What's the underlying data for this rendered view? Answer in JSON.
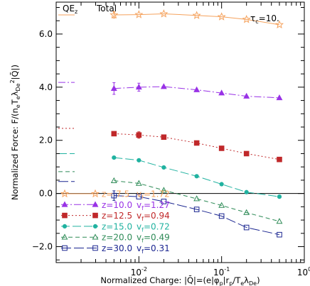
{
  "chart_data": {
    "type": "line",
    "x_scale": "log",
    "xlim": [
      0.001,
      1
    ],
    "ylim": [
      -2.6,
      7.2
    ],
    "xlabel": "Normalized Charge: |Q̄|=(e|φp|rp/TeλDe)",
    "ylabel": "Normalized Force: F/(neTeλDe2|Q̄|)",
    "x_ticks": [
      {
        "value": 0.01,
        "base": "10",
        "exp": "-2"
      },
      {
        "value": 0.1,
        "base": "10",
        "exp": "-1"
      },
      {
        "value": 1,
        "base": "10",
        "exp": "0"
      }
    ],
    "y_ticks": [
      {
        "value": -2.0,
        "label": "−2.0"
      },
      {
        "value": 0.0,
        "label": "0.0"
      },
      {
        "value": 2.0,
        "label": "2.0"
      },
      {
        "value": 4.0,
        "label": "4.0"
      },
      {
        "value": 6.0,
        "label": "6.0"
      }
    ],
    "annotations": {
      "qe_main": "QE",
      "qe_sub": "z",
      "total": "Total",
      "tau_main": "τ",
      "tau_sub": "c",
      "tau_rest": "=10."
    },
    "x": [
      0.005,
      0.01,
      0.02,
      0.05,
      0.1,
      0.2,
      0.5
    ],
    "series": [
      {
        "z_label": "z= 7.5",
        "vf_label": "v",
        "vf_sub": "f",
        "vf_value": "=1.72",
        "color": "#f5a25d",
        "marker": "star",
        "dash": "none",
        "qe": 6.72,
        "values": [
          6.72,
          6.73,
          6.76,
          6.7,
          6.65,
          6.55,
          6.35
        ],
        "errors": [
          0.12,
          0,
          0,
          0,
          0,
          0,
          0
        ]
      },
      {
        "z_label": "z=10.0",
        "vf_label": "v",
        "vf_sub": "f",
        "vf_value": "=1.27",
        "color": "#9932e6",
        "marker": "triangle-filled",
        "dash": "10,3,2,3",
        "qe": 4.18,
        "values": [
          3.95,
          4.0,
          4.02,
          3.9,
          3.78,
          3.66,
          3.6
        ],
        "errors": [
          0.22,
          0.15,
          0,
          0,
          0,
          0,
          0
        ]
      },
      {
        "z_label": "z=12.5",
        "vf_label": "v",
        "vf_sub": "f",
        "vf_value": "=0.94",
        "color": "#c0282a",
        "marker": "square-filled",
        "dash": "2,3",
        "qe": 2.45,
        "values": [
          2.25,
          2.2,
          2.12,
          1.9,
          1.7,
          1.5,
          1.28
        ],
        "errors": [
          0,
          0.12,
          0,
          0,
          0,
          0,
          0
        ]
      },
      {
        "z_label": "z=15.0",
        "vf_label": "v",
        "vf_sub": "f",
        "vf_value": "=0.72",
        "color": "#20b2a0",
        "marker": "circle-filled",
        "dash": "12,4",
        "qe": 1.5,
        "values": [
          1.35,
          1.25,
          0.98,
          0.65,
          0.35,
          0.05,
          -0.12
        ],
        "errors": [
          0,
          0,
          0,
          0,
          0,
          0,
          0
        ]
      },
      {
        "z_label": "z=20.0",
        "vf_label": "v",
        "vf_sub": "f",
        "vf_value": "=0.49",
        "color": "#2e8b57",
        "marker": "triangle-open",
        "dash": "6,4",
        "qe": 0.82,
        "values": [
          0.48,
          0.38,
          0.12,
          -0.2,
          -0.45,
          -0.72,
          -1.05
        ],
        "errors": [
          0,
          0,
          0,
          0,
          0,
          0,
          0
        ]
      },
      {
        "z_label": "z=30.0",
        "vf_label": "v",
        "vf_sub": "f",
        "vf_value": "=0.31",
        "color": "#1a2590",
        "marker": "square-open",
        "dash": "14,4",
        "qe": 0.45,
        "values": [
          -0.08,
          -0.12,
          -0.3,
          -0.6,
          -0.85,
          -1.28,
          -1.55
        ],
        "errors": [
          0.18,
          0,
          0,
          0,
          0,
          0,
          0
        ]
      }
    ]
  }
}
